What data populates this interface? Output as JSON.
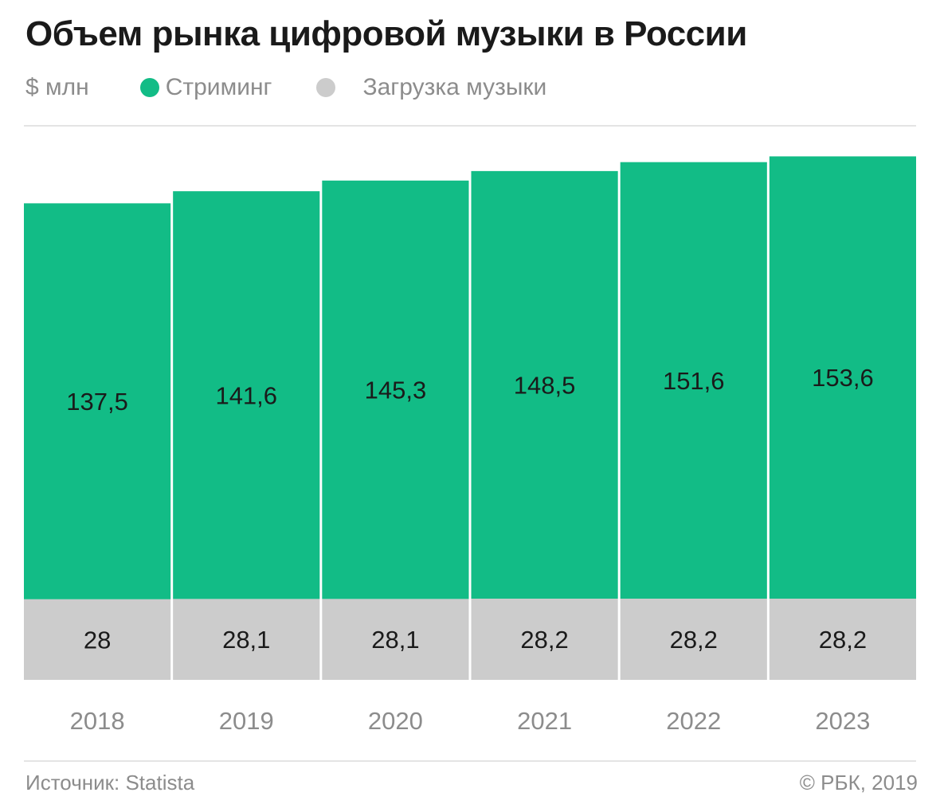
{
  "title": "Объем рынка цифровой музыки в России",
  "unit": "$ млн",
  "legend": [
    {
      "label": "Стриминг",
      "color": "#12bc86"
    },
    {
      "label": "Загрузка музыки",
      "color": "#cccccc"
    }
  ],
  "chart_data": {
    "type": "bar",
    "stacked": true,
    "categories": [
      "2018",
      "2019",
      "2020",
      "2021",
      "2022",
      "2023"
    ],
    "series": [
      {
        "name": "Загрузка музыки",
        "color": "#cccccc",
        "values": [
          28,
          28.1,
          28.1,
          28.2,
          28.2,
          28.2
        ]
      },
      {
        "name": "Стриминг",
        "color": "#12bc86",
        "values": [
          137.5,
          141.6,
          145.3,
          148.5,
          151.6,
          153.6
        ]
      }
    ],
    "data_labels": {
      "Загрузка музыки": [
        "28",
        "28,1",
        "28,1",
        "28,2",
        "28,2",
        "28,2"
      ],
      "Стриминг": [
        "137,5",
        "141,6",
        "145,3",
        "148,5",
        "151,6",
        "153,6"
      ]
    },
    "grid": false,
    "legend_position": "top-left"
  },
  "footer": {
    "source": "Источник: Statista",
    "copyright": "© РБК, 2019"
  }
}
